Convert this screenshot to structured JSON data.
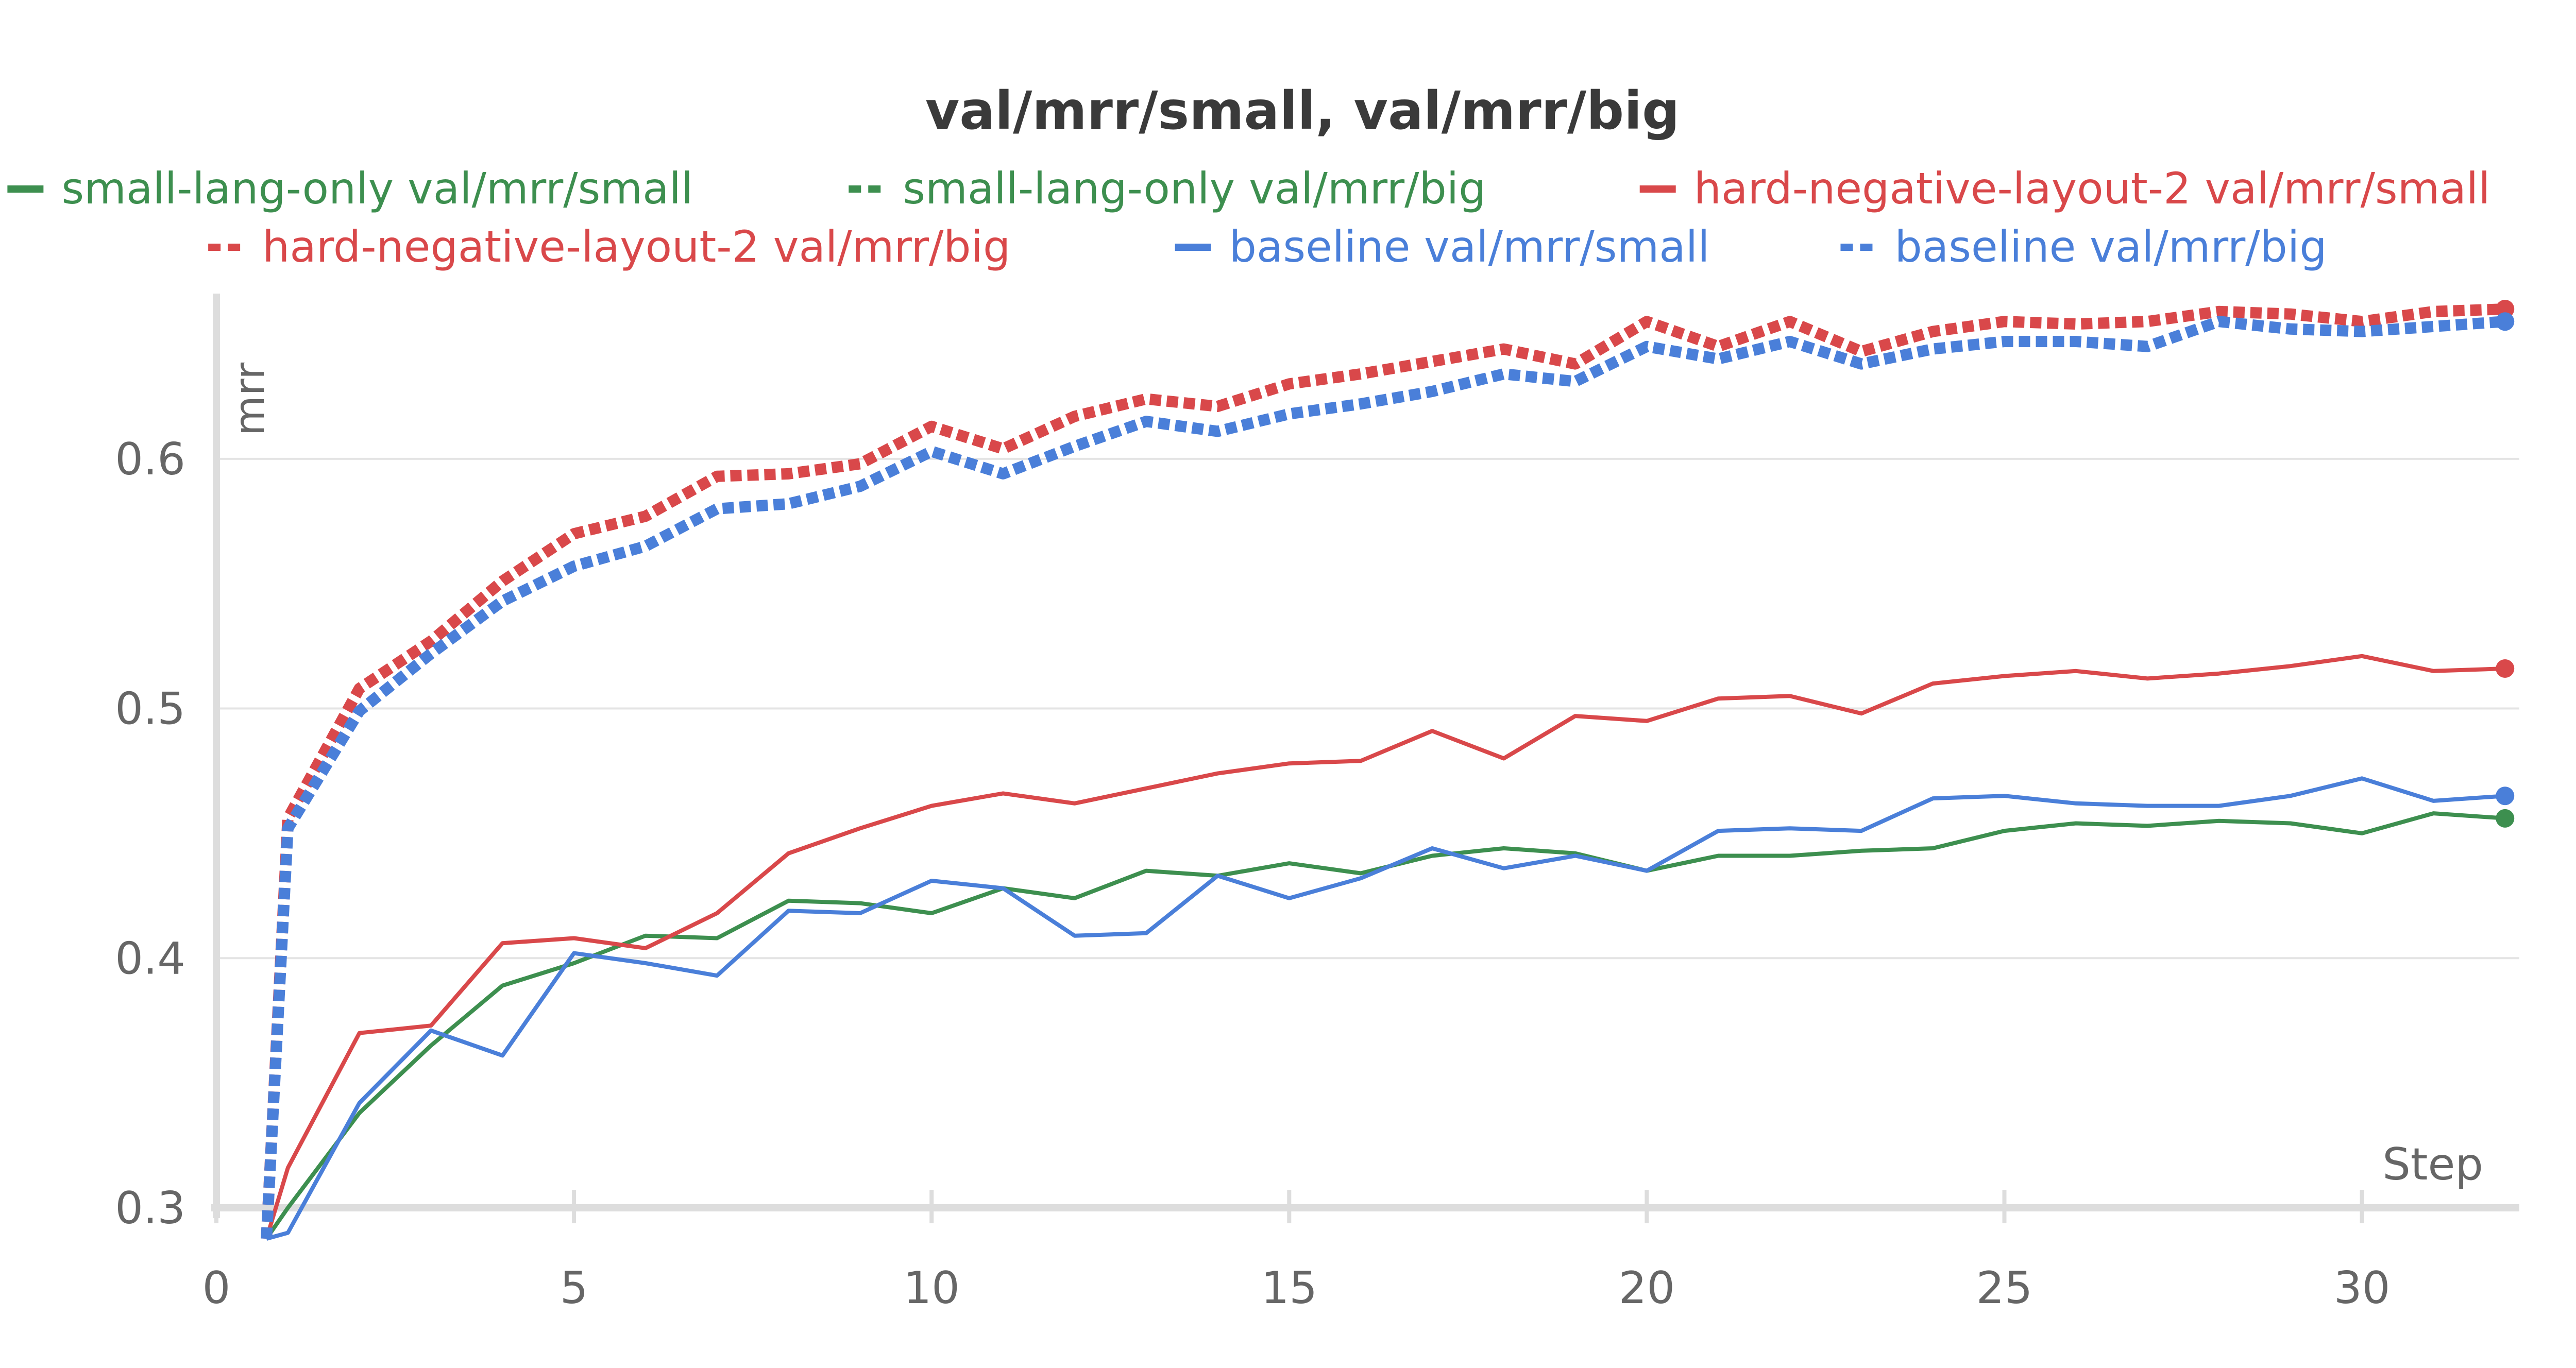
{
  "chart_data": {
    "type": "line",
    "title": "val/mrr/small, val/mrr/big",
    "xlabel": "Step",
    "ylabel": "mrr",
    "xlim": [
      0,
      32.2
    ],
    "ylim": [
      0.3,
      0.66
    ],
    "xticks": [
      "0",
      "5",
      "10",
      "15",
      "20",
      "25",
      "30"
    ],
    "yticks": [
      "0.3",
      "0.4",
      "0.5",
      "0.6"
    ],
    "grid": "horizontal",
    "legend_position": "top",
    "series": [
      {
        "name": "small-lang-only val/mrr/small",
        "color": "#3d8f4f",
        "dash": "solid",
        "x": [
          1,
          2,
          3,
          4,
          5,
          6,
          7,
          8,
          9,
          10,
          11,
          12,
          13,
          14,
          15,
          16,
          17,
          18,
          19,
          20,
          21,
          22,
          23,
          24,
          25,
          26,
          27,
          28,
          29,
          30,
          31,
          32
        ],
        "y": [
          0.3,
          0.338,
          0.365,
          0.389,
          0.398,
          0.409,
          0.408,
          0.423,
          0.422,
          0.418,
          0.428,
          0.424,
          0.435,
          0.433,
          0.438,
          0.434,
          0.441,
          0.444,
          0.442,
          0.435,
          0.441,
          0.441,
          0.443,
          0.444,
          0.451,
          0.454,
          0.453,
          0.455,
          0.454,
          0.45,
          0.458,
          0.456
        ]
      },
      {
        "name": "small-lang-only val/mrr/big",
        "color": "#3d8f4f",
        "dash": "dashed",
        "x": [],
        "y": []
      },
      {
        "name": "hard-negative-layout-2 val/mrr/small",
        "color": "#d9484a",
        "dash": "solid",
        "x": [
          1,
          2,
          3,
          4,
          5,
          6,
          7,
          8,
          9,
          10,
          11,
          12,
          13,
          14,
          15,
          16,
          17,
          18,
          19,
          20,
          21,
          22,
          23,
          24,
          25,
          26,
          27,
          28,
          29,
          30,
          31,
          32
        ],
        "y": [
          0.316,
          0.37,
          0.373,
          0.406,
          0.408,
          0.404,
          0.418,
          0.442,
          0.452,
          0.461,
          0.466,
          0.462,
          0.468,
          0.474,
          0.478,
          0.479,
          0.491,
          0.48,
          0.497,
          0.495,
          0.504,
          0.505,
          0.498,
          0.51,
          0.513,
          0.515,
          0.512,
          0.514,
          0.517,
          0.521,
          0.515,
          0.516
        ]
      },
      {
        "name": "hard-negative-layout-2 val/mrr/big",
        "color": "#d9484a",
        "dash": "dotted",
        "x": [
          1,
          2,
          3,
          4,
          5,
          6,
          7,
          8,
          9,
          10,
          11,
          12,
          13,
          14,
          15,
          16,
          17,
          18,
          19,
          20,
          21,
          22,
          23,
          24,
          25,
          26,
          27,
          28,
          29,
          30,
          31,
          32
        ],
        "y": [
          0.456,
          0.508,
          0.527,
          0.551,
          0.57,
          0.577,
          0.593,
          0.594,
          0.598,
          0.613,
          0.604,
          0.617,
          0.624,
          0.621,
          0.63,
          0.634,
          0.639,
          0.644,
          0.638,
          0.655,
          0.645,
          0.655,
          0.643,
          0.651,
          0.655,
          0.654,
          0.655,
          0.659,
          0.658,
          0.655,
          0.659,
          0.66
        ]
      },
      {
        "name": "baseline val/mrr/small",
        "color": "#4a7fd9",
        "dash": "solid",
        "x": [
          1,
          2,
          3,
          4,
          5,
          6,
          7,
          8,
          9,
          10,
          11,
          12,
          13,
          14,
          15,
          16,
          17,
          18,
          19,
          20,
          21,
          22,
          23,
          24,
          25,
          26,
          27,
          28,
          29,
          30,
          31,
          32
        ],
        "y": [
          0.29,
          0.342,
          0.371,
          0.361,
          0.402,
          0.398,
          0.393,
          0.419,
          0.418,
          0.431,
          0.428,
          0.409,
          0.41,
          0.433,
          0.424,
          0.432,
          0.444,
          0.436,
          0.441,
          0.435,
          0.451,
          0.452,
          0.451,
          0.464,
          0.465,
          0.462,
          0.461,
          0.461,
          0.465,
          0.472,
          0.463,
          0.465
        ]
      },
      {
        "name": "baseline val/mrr/big",
        "color": "#4a7fd9",
        "dash": "dotted",
        "x": [
          1,
          2,
          3,
          4,
          5,
          6,
          7,
          8,
          9,
          10,
          11,
          12,
          13,
          14,
          15,
          16,
          17,
          18,
          19,
          20,
          21,
          22,
          23,
          24,
          25,
          26,
          27,
          28,
          29,
          30,
          31,
          32
        ],
        "y": [
          0.452,
          0.499,
          0.522,
          0.543,
          0.557,
          0.565,
          0.58,
          0.582,
          0.589,
          0.603,
          0.594,
          0.605,
          0.615,
          0.611,
          0.618,
          0.622,
          0.627,
          0.634,
          0.631,
          0.645,
          0.64,
          0.647,
          0.638,
          0.644,
          0.647,
          0.647,
          0.645,
          0.655,
          0.652,
          0.651,
          0.653,
          0.655
        ]
      }
    ]
  }
}
